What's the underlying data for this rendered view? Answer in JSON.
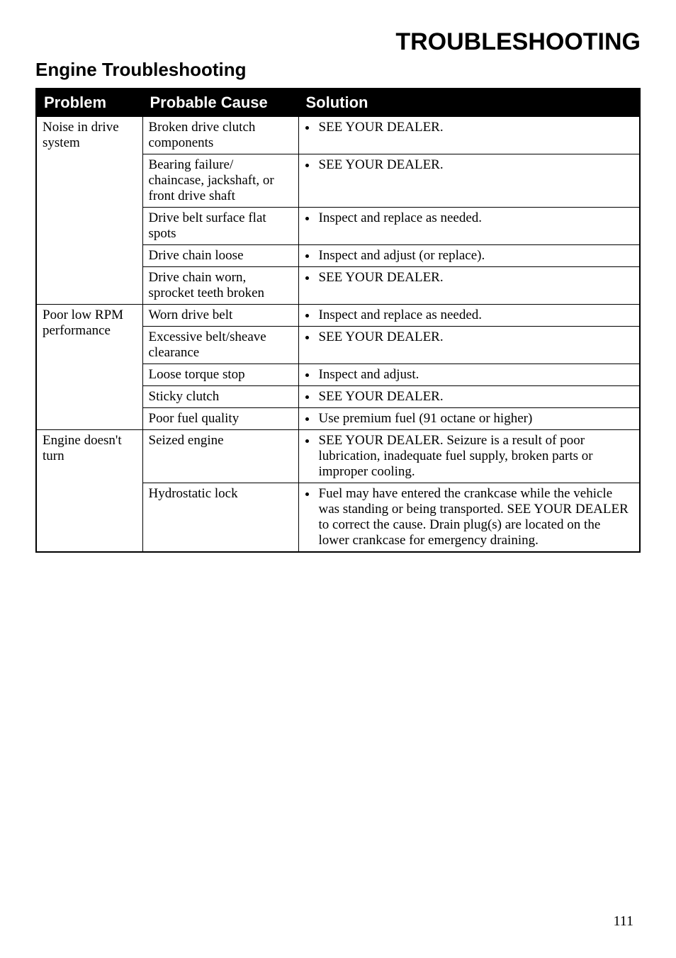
{
  "title": "TROUBLESHOOTING",
  "subtitle": "Engine Troubleshooting",
  "title_fontsize": 34,
  "subtitle_fontsize": 26,
  "header_fontsize": 22,
  "body_fontsize": 19,
  "pagenum_fontsize": 20,
  "page_number": "111",
  "columns": [
    "Problem",
    "Probable Cause",
    "Solution"
  ],
  "groups": [
    {
      "problem": "Noise in drive system",
      "rows": [
        {
          "cause": "Broken drive clutch components",
          "solution": "SEE YOUR DEALER."
        },
        {
          "cause": "Bearing failure/ chaincase, jackshaft, or front drive shaft",
          "solution": "SEE YOUR DEALER."
        },
        {
          "cause": "Drive belt surface flat spots",
          "solution": "Inspect and replace as needed."
        },
        {
          "cause": "Drive chain loose",
          "solution": "Inspect and adjust (or replace)."
        },
        {
          "cause": "Drive chain worn, sprocket teeth broken",
          "solution": "SEE YOUR DEALER."
        }
      ]
    },
    {
      "problem": "Poor low RPM performance",
      "rows": [
        {
          "cause": "Worn drive belt",
          "solution": "Inspect and replace as needed."
        },
        {
          "cause": "Excessive belt/sheave clearance",
          "solution": "SEE YOUR DEALER."
        },
        {
          "cause": "Loose torque stop",
          "solution": "Inspect and adjust."
        },
        {
          "cause": "Sticky clutch",
          "solution": "SEE YOUR DEALER."
        },
        {
          "cause": "Poor fuel quality",
          "solution": "Use premium fuel (91 octane or higher)"
        }
      ]
    },
    {
      "problem": "Engine doesn't turn",
      "rows": [
        {
          "cause": "Seized engine",
          "solution": "SEE YOUR DEALER.  Seizure is a result of poor lubrication, inadequate fuel supply, broken parts or improper cooling."
        },
        {
          "cause": "Hydrostatic lock",
          "solution": "Fuel may have entered the crankcase while the vehicle was standing or being transported.  SEE YOUR DEALER to correct the cause.  Drain plug(s) are located on the lower crankcase for emergency draining."
        }
      ]
    }
  ]
}
